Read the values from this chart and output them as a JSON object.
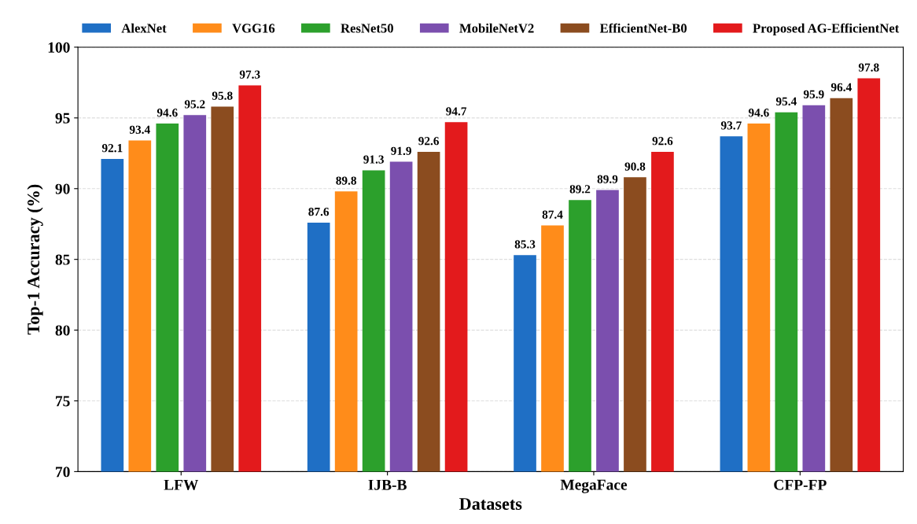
{
  "chart_data": {
    "type": "bar",
    "xlabel": "Datasets",
    "ylabel": "Top-1 Accuracy (%)",
    "categories": [
      "LFW",
      "IJB-B",
      "MegaFace",
      "CFP-FP"
    ],
    "series": [
      {
        "name": "AlexNet",
        "color": "#1f6fc5",
        "values": [
          92.1,
          87.6,
          85.3,
          93.7
        ]
      },
      {
        "name": "VGG16",
        "color": "#ff8c1a",
        "values": [
          93.4,
          89.8,
          87.4,
          94.6
        ]
      },
      {
        "name": "ResNet50",
        "color": "#2ca02c",
        "values": [
          94.6,
          91.3,
          89.2,
          95.4
        ]
      },
      {
        "name": "MobileNetV2",
        "color": "#7b4fae",
        "values": [
          95.2,
          91.9,
          89.9,
          95.9
        ]
      },
      {
        "name": "EfficientNet-B0",
        "color": "#8b4c1f",
        "values": [
          95.8,
          92.6,
          90.8,
          96.4
        ]
      },
      {
        "name": "Proposed AG-EfficientNet",
        "color": "#e31a1c",
        "values": [
          97.3,
          94.7,
          92.6,
          97.8
        ]
      }
    ],
    "ylim": [
      70,
      100
    ],
    "yticks": [
      70,
      75,
      80,
      85,
      90,
      95,
      100
    ],
    "grid": "y",
    "legend": "top",
    "data_labels": true
  }
}
